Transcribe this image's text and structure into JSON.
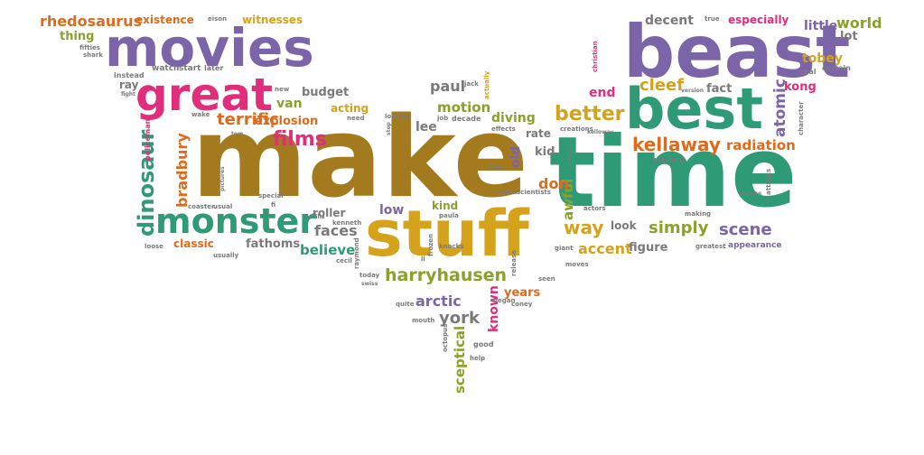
{
  "palette": {
    "purple": "#7b64a8",
    "gold": "#d4a21b",
    "brown": "#a47a1e",
    "green": "#2e9a76",
    "pink": "#e02d7c",
    "orange": "#e06a1c",
    "olive": "#8aa22a",
    "gray": "#7a7a7a"
  },
  "words": [
    {
      "text": "make",
      "color": "brown"
    },
    {
      "text": "time",
      "color": "green"
    },
    {
      "text": "beast",
      "color": "purple"
    },
    {
      "text": "best",
      "color": "green"
    },
    {
      "text": "stuff",
      "color": "gold"
    },
    {
      "text": "movies",
      "color": "purple"
    },
    {
      "text": "great",
      "color": "pink"
    },
    {
      "text": "monster",
      "color": "green"
    },
    {
      "text": "harryhausen",
      "color": "olive"
    },
    {
      "text": "rhedosaurus",
      "color": "orange"
    },
    {
      "text": "films",
      "color": "pink"
    },
    {
      "text": "terrific",
      "color": "orange"
    },
    {
      "text": "dinosaur",
      "color": "green"
    },
    {
      "text": "bradbury",
      "color": "orange"
    },
    {
      "text": "better",
      "color": "gold"
    },
    {
      "text": "kellaway",
      "color": "orange"
    },
    {
      "text": "radiation",
      "color": "orange"
    },
    {
      "text": "atomic",
      "color": "purple"
    },
    {
      "text": "cleef",
      "color": "gold"
    },
    {
      "text": "world",
      "color": "olive"
    },
    {
      "text": "little",
      "color": "purple"
    },
    {
      "text": "especially",
      "color": "pink"
    },
    {
      "text": "decent",
      "color": "gray"
    },
    {
      "text": "tobey",
      "color": "gold"
    },
    {
      "text": "kong",
      "color": "pink"
    },
    {
      "text": "fact",
      "color": "gray"
    },
    {
      "text": "end",
      "color": "pink"
    },
    {
      "text": "simply",
      "color": "olive"
    },
    {
      "text": "scene",
      "color": "purple"
    },
    {
      "text": "way",
      "color": "gold"
    },
    {
      "text": "accent",
      "color": "gold"
    },
    {
      "text": "figure",
      "color": "gray"
    },
    {
      "text": "awful",
      "color": "olive"
    },
    {
      "text": "look",
      "color": "gray"
    },
    {
      "text": "don",
      "color": "orange"
    },
    {
      "text": "kid",
      "color": "gray"
    },
    {
      "text": "old",
      "color": "purple"
    },
    {
      "text": "diving",
      "color": "olive"
    },
    {
      "text": "motion",
      "color": "olive"
    },
    {
      "text": "paul",
      "color": "gray"
    },
    {
      "text": "lee",
      "color": "gray"
    },
    {
      "text": "rate",
      "color": "gray"
    },
    {
      "text": "kind",
      "color": "olive"
    },
    {
      "text": "low",
      "color": "purple"
    },
    {
      "text": "york",
      "color": "gray"
    },
    {
      "text": "arctic",
      "color": "purple"
    },
    {
      "text": "known",
      "color": "pink"
    },
    {
      "text": "sceptical",
      "color": "olive"
    },
    {
      "text": "years",
      "color": "orange"
    },
    {
      "text": "faces",
      "color": "gray"
    },
    {
      "text": "believe",
      "color": "green"
    },
    {
      "text": "fathoms",
      "color": "gray"
    },
    {
      "text": "classic",
      "color": "orange"
    },
    {
      "text": "roller",
      "color": "gray"
    },
    {
      "text": "van",
      "color": "olive"
    },
    {
      "text": "budget",
      "color": "gray"
    },
    {
      "text": "acting",
      "color": "gold"
    },
    {
      "text": "explosion",
      "color": "orange"
    },
    {
      "text": "existence",
      "color": "orange"
    },
    {
      "text": "witnesses",
      "color": "gold"
    },
    {
      "text": "thing",
      "color": "olive"
    },
    {
      "text": "lot",
      "color": "gray"
    },
    {
      "text": "ray",
      "color": "gray"
    },
    {
      "text": "watch",
      "color": "gray"
    },
    {
      "text": "start",
      "color": "gray"
    },
    {
      "text": "instead",
      "color": "gray"
    },
    {
      "text": "later",
      "color": "gray"
    },
    {
      "text": "eison",
      "color": "gray"
    },
    {
      "text": "true",
      "color": "gray"
    },
    {
      "text": "certain",
      "color": "gray"
    },
    {
      "text": "real",
      "color": "gray"
    },
    {
      "text": "christian",
      "color": "pink"
    },
    {
      "text": "actually",
      "color": "gold"
    },
    {
      "text": "jack",
      "color": "gray"
    },
    {
      "text": "job",
      "color": "gray"
    },
    {
      "text": "decade",
      "color": "gray"
    },
    {
      "text": "effects",
      "color": "gray"
    },
    {
      "text": "creations",
      "color": "gray"
    },
    {
      "text": "looking",
      "color": "gray"
    },
    {
      "text": "need",
      "color": "gray"
    },
    {
      "text": "new",
      "color": "gray"
    },
    {
      "text": "fifties",
      "color": "gray"
    },
    {
      "text": "shark",
      "color": "gray"
    },
    {
      "text": "policeman",
      "color": "pink"
    },
    {
      "text": "coaster",
      "color": "gray"
    },
    {
      "text": "usual",
      "color": "gray"
    },
    {
      "text": "special",
      "color": "gray"
    },
    {
      "text": "scientists",
      "color": "gray"
    },
    {
      "text": "knew",
      "color": "gray"
    },
    {
      "text": "king",
      "color": "gray"
    },
    {
      "text": "kenneth",
      "color": "gray"
    },
    {
      "text": "paula",
      "color": "gray"
    },
    {
      "text": "cecil",
      "color": "gray"
    },
    {
      "text": "loose",
      "color": "gray"
    },
    {
      "text": "usually",
      "color": "gray"
    },
    {
      "text": "actors",
      "color": "gray"
    },
    {
      "text": "watching",
      "color": "gray"
    },
    {
      "text": "making",
      "color": "gray"
    },
    {
      "text": "greatest",
      "color": "gray"
    },
    {
      "text": "appearance",
      "color": "purple"
    },
    {
      "text": "giant",
      "color": "gray"
    },
    {
      "text": "moves",
      "color": "gray"
    },
    {
      "text": "release",
      "color": "gray"
    },
    {
      "text": "seen",
      "color": "gray"
    },
    {
      "text": "began",
      "color": "gray"
    },
    {
      "text": "coney",
      "color": "gray"
    },
    {
      "text": "quite",
      "color": "gray"
    },
    {
      "text": "mouth",
      "color": "gray"
    },
    {
      "text": "octopus",
      "color": "gray"
    },
    {
      "text": "frozen",
      "color": "gray"
    },
    {
      "text": "knocks",
      "color": "gray"
    },
    {
      "text": "good",
      "color": "gray"
    },
    {
      "text": "help",
      "color": "gray"
    },
    {
      "text": "today",
      "color": "gray"
    },
    {
      "text": "swiss",
      "color": "gray"
    },
    {
      "text": "raymond",
      "color": "gray"
    },
    {
      "text": "character",
      "color": "gray"
    },
    {
      "text": "attacks",
      "color": "gray"
    },
    {
      "text": "science",
      "color": "gray"
    },
    {
      "text": "wake",
      "color": "gray"
    },
    {
      "text": "tom",
      "color": "gray"
    },
    {
      "text": "fight",
      "color": "gray"
    },
    {
      "text": "pictures",
      "color": "gray"
    },
    {
      "text": "version",
      "color": "gray"
    },
    {
      "text": "fi",
      "color": "gray"
    },
    {
      "text": "gorilla",
      "color": "gray"
    },
    {
      "text": "kelloway",
      "color": "gray"
    },
    {
      "text": "chance",
      "color": "gray"
    },
    {
      "text": "stop",
      "color": "gray"
    },
    {
      "text": "ll",
      "color": "gray"
    }
  ]
}
